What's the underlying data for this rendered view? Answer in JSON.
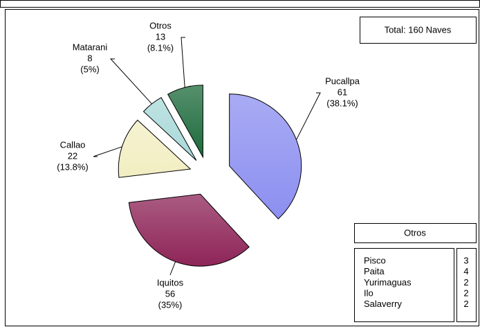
{
  "chart_data": {
    "type": "pie",
    "categories": [
      "Pucallpa",
      "Iquitos",
      "Callao",
      "Matarani",
      "Otros"
    ],
    "values": [
      61,
      56,
      22,
      8,
      13
    ],
    "percent_labels": [
      "(38.1%)",
      "(35%)",
      "(13.8%)",
      "(5%)",
      "(8.1%)"
    ],
    "colors": [
      "#8c8ff0",
      "#8e2558",
      "#f2eec2",
      "#a9d9d9",
      "#1d6b3c"
    ],
    "total_label": "Total: 160 Naves",
    "other_table": {
      "title": "Otros",
      "rows": [
        {
          "name": "Pisco",
          "value": "3"
        },
        {
          "name": "Paita",
          "value": "4"
        },
        {
          "name": "Yurimaguas",
          "value": "2"
        },
        {
          "name": "Ilo",
          "value": "2"
        },
        {
          "name": "Salaverry",
          "value": "2"
        }
      ]
    }
  }
}
